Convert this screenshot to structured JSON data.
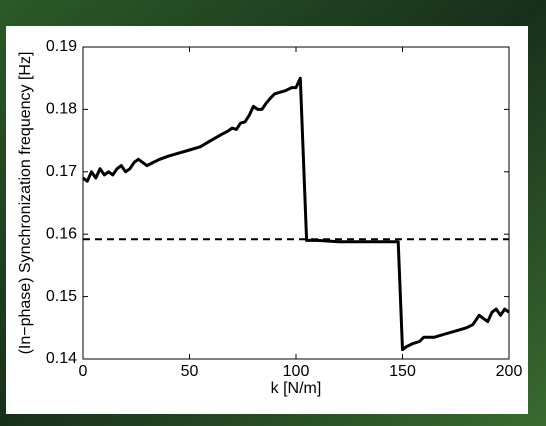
{
  "chart_data": {
    "type": "line",
    "xlabel": "k [N/m]",
    "ylabel": "(In−phase) Synchronization frequency [Hz]",
    "xlim": [
      0,
      200
    ],
    "ylim": [
      0.14,
      0.19
    ],
    "xticks": [
      0,
      50,
      100,
      150,
      200
    ],
    "yticks": [
      0.14,
      0.15,
      0.16,
      0.17,
      0.18,
      0.19
    ],
    "reference_line": {
      "value": 0.1592,
      "style": "dashed",
      "color": "#000000"
    },
    "series": [
      {
        "color": "#000000",
        "x": [
          0,
          2,
          4,
          6,
          8,
          10,
          12,
          14,
          16,
          18,
          20,
          22,
          24,
          26,
          28,
          30,
          33,
          36,
          40,
          45,
          50,
          55,
          60,
          65,
          68,
          70,
          72,
          74,
          76,
          78,
          80,
          82,
          84,
          86,
          88,
          90,
          95,
          98,
          100,
          102,
          105,
          110,
          120,
          130,
          140,
          148,
          150,
          152,
          155,
          158,
          160,
          165,
          170,
          175,
          180,
          183,
          186,
          188,
          190,
          192,
          194,
          196,
          198,
          200
        ],
        "values": [
          0.169,
          0.1685,
          0.17,
          0.169,
          0.1705,
          0.1695,
          0.17,
          0.1695,
          0.1705,
          0.171,
          0.17,
          0.1705,
          0.1715,
          0.172,
          0.1715,
          0.171,
          0.1715,
          0.172,
          0.1725,
          0.173,
          0.1735,
          0.174,
          0.175,
          0.176,
          0.1765,
          0.177,
          0.1768,
          0.1778,
          0.178,
          0.179,
          0.1805,
          0.18,
          0.18,
          0.181,
          0.1818,
          0.1825,
          0.183,
          0.1835,
          0.1835,
          0.185,
          0.159,
          0.159,
          0.1588,
          0.1588,
          0.1588,
          0.1588,
          0.1415,
          0.142,
          0.1425,
          0.1428,
          0.1435,
          0.1435,
          0.144,
          0.1445,
          0.145,
          0.1455,
          0.147,
          0.1465,
          0.146,
          0.1475,
          0.148,
          0.147,
          0.148,
          0.1475
        ]
      }
    ]
  }
}
